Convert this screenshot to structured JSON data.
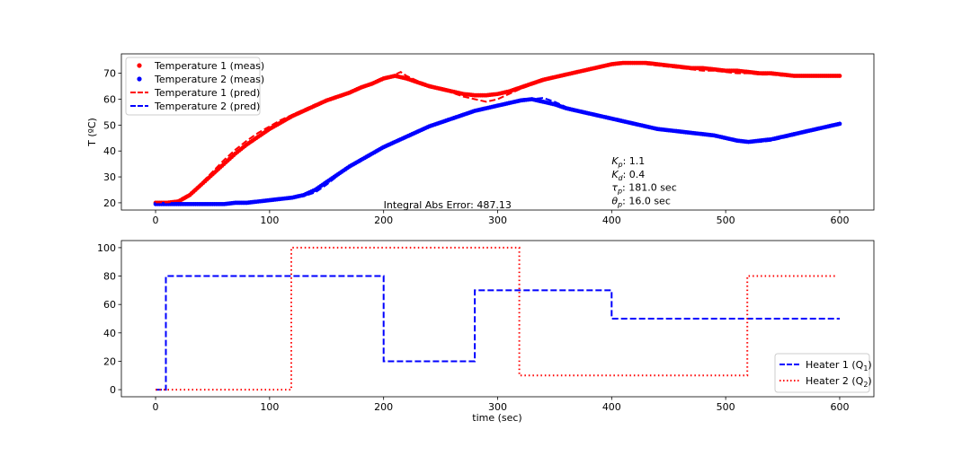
{
  "chart_data": [
    {
      "type": "scatter",
      "ylabel": "T (ºC)",
      "xlim": [
        -30,
        630
      ],
      "ylim": [
        17.2,
        77.5
      ],
      "xticks": [
        0,
        100,
        200,
        300,
        400,
        500,
        600
      ],
      "yticks": [
        20,
        30,
        40,
        50,
        60,
        70
      ],
      "legend_position": "top-left",
      "series": [
        {
          "name": "Temperature 1 (meas)",
          "style": "points",
          "color": "#ff0000",
          "x": [
            0,
            10,
            20,
            30,
            40,
            50,
            60,
            70,
            80,
            90,
            100,
            110,
            120,
            130,
            140,
            150,
            160,
            170,
            180,
            190,
            200,
            210,
            220,
            230,
            240,
            250,
            260,
            270,
            280,
            290,
            300,
            310,
            320,
            330,
            340,
            350,
            360,
            370,
            380,
            390,
            400,
            410,
            420,
            430,
            440,
            450,
            460,
            470,
            480,
            490,
            500,
            510,
            520,
            530,
            540,
            550,
            560,
            570,
            580,
            590,
            600
          ],
          "y": [
            20,
            20,
            20.5,
            23,
            27,
            31,
            35,
            39,
            42.5,
            45.5,
            48.5,
            51,
            53.5,
            55.5,
            57.5,
            59.5,
            61,
            62.5,
            64.5,
            66,
            68,
            69,
            68,
            66.5,
            65,
            64,
            63,
            62,
            61.5,
            61.5,
            62,
            63,
            64.5,
            66,
            67.5,
            68.5,
            69.5,
            70.5,
            71.5,
            72.5,
            73.5,
            74,
            74,
            74,
            73.5,
            73,
            72.5,
            72,
            72,
            71.5,
            71,
            71,
            70.5,
            70,
            70,
            69.5,
            69,
            69,
            69,
            69,
            69
          ]
        },
        {
          "name": "Temperature 2 (meas)",
          "style": "points",
          "color": "#0000ff",
          "x": [
            0,
            10,
            20,
            30,
            40,
            50,
            60,
            70,
            80,
            90,
            100,
            110,
            120,
            130,
            140,
            150,
            160,
            170,
            180,
            190,
            200,
            210,
            220,
            230,
            240,
            250,
            260,
            270,
            280,
            290,
            300,
            310,
            320,
            330,
            340,
            350,
            360,
            370,
            380,
            390,
            400,
            410,
            420,
            430,
            440,
            450,
            460,
            470,
            480,
            490,
            500,
            510,
            520,
            530,
            540,
            550,
            560,
            570,
            580,
            590,
            600
          ],
          "y": [
            19.5,
            19.5,
            19.5,
            19.5,
            19.5,
            19.5,
            19.5,
            20,
            20,
            20.5,
            21,
            21.5,
            22,
            23,
            25,
            28,
            31,
            34,
            36.5,
            39,
            41.5,
            43.5,
            45.5,
            47.5,
            49.5,
            51,
            52.5,
            54,
            55.5,
            56.5,
            57.5,
            58.5,
            59.5,
            60,
            59,
            58,
            56.5,
            55.5,
            54.5,
            53.5,
            52.5,
            51.5,
            50.5,
            49.5,
            48.5,
            48,
            47.5,
            47,
            46.5,
            46,
            45,
            44,
            43.5,
            44,
            44.5,
            45.5,
            46.5,
            47.5,
            48.5,
            49.5,
            50.5
          ]
        },
        {
          "name": "Temperature 1 (pred)",
          "style": "dashed",
          "color": "#ff0000",
          "x": [
            0,
            10,
            20,
            30,
            40,
            50,
            60,
            70,
            80,
            90,
            100,
            110,
            120,
            130,
            140,
            150,
            160,
            170,
            180,
            190,
            200,
            210,
            215,
            220,
            230,
            240,
            250,
            260,
            270,
            280,
            290,
            300,
            310,
            320,
            330,
            340,
            350,
            360,
            370,
            380,
            390,
            400,
            410,
            420,
            430,
            440,
            450,
            460,
            470,
            480,
            490,
            500,
            510,
            520,
            530,
            540,
            550,
            560,
            570,
            580,
            590,
            600
          ],
          "y": [
            20,
            20,
            21,
            23.5,
            27.5,
            32,
            36.5,
            40.5,
            44,
            47,
            49.5,
            52,
            54,
            56,
            58,
            59.5,
            61,
            62.5,
            64,
            66,
            68,
            69.5,
            70.5,
            69,
            67,
            65.5,
            64,
            62.5,
            61,
            60,
            59,
            60,
            62,
            64,
            65.5,
            67,
            68.5,
            69.5,
            70.5,
            71.5,
            72.5,
            73.5,
            74,
            74,
            73.5,
            73,
            72.5,
            72,
            71.5,
            71,
            71,
            70.5,
            70,
            70,
            69.5,
            69.5,
            69,
            69,
            69,
            69,
            69,
            69
          ]
        },
        {
          "name": "Temperature 2 (pred)",
          "style": "dashed",
          "color": "#0000ff",
          "x": [
            0,
            10,
            20,
            30,
            40,
            50,
            60,
            70,
            80,
            90,
            100,
            110,
            120,
            130,
            140,
            150,
            160,
            170,
            180,
            190,
            200,
            210,
            220,
            230,
            240,
            250,
            260,
            270,
            280,
            290,
            300,
            310,
            320,
            330,
            340,
            350,
            360,
            370,
            380,
            390,
            400,
            410,
            420,
            430,
            440,
            450,
            460,
            470,
            480,
            490,
            500,
            510,
            520,
            530,
            540,
            550,
            560,
            570,
            580,
            590,
            600
          ],
          "y": [
            19.5,
            19.5,
            19.5,
            19.5,
            19.5,
            19.5,
            19.5,
            20,
            20,
            20.5,
            21,
            21.5,
            22,
            22.5,
            24,
            27,
            30.5,
            34,
            36.5,
            39,
            41.5,
            43.5,
            45.5,
            47.5,
            49.5,
            51,
            52.5,
            54,
            55.5,
            56.5,
            57.5,
            58.5,
            59.5,
            60,
            60.5,
            59,
            57,
            55.5,
            54.5,
            53.5,
            52.5,
            51.5,
            50.5,
            49.5,
            48.5,
            48,
            47.5,
            47,
            46.5,
            46,
            45,
            44,
            43.5,
            43.5,
            44,
            45,
            46,
            47.5,
            48.5,
            49.5,
            50.5
          ]
        }
      ],
      "annotations": [
        {
          "text": "Integral Abs Error: 487.13",
          "x": 200,
          "y": 19.3
        },
        {
          "sym": "K",
          "sub": "p",
          "text": ": 1.1",
          "x": 400,
          "y": 36.2
        },
        {
          "sym": "K",
          "sub": "d",
          "text": ": 0.4",
          "x": 400,
          "y": 31.1
        },
        {
          "sym": "τ",
          "sub": "p",
          "text": ": 181.0 sec",
          "x": 400,
          "y": 26.0
        },
        {
          "sym": "θ",
          "sub": "p",
          "text": ": 16.0 sec",
          "x": 400,
          "y": 20.9
        }
      ]
    },
    {
      "type": "line",
      "xlabel": "time (sec)",
      "xlim": [
        -30,
        630
      ],
      "ylim": [
        -5,
        105
      ],
      "xticks": [
        0,
        100,
        200,
        300,
        400,
        500,
        600
      ],
      "yticks": [
        0,
        20,
        40,
        60,
        80,
        100
      ],
      "legend_position": "bottom-right",
      "series": [
        {
          "name": "Heater 1 (Q",
          "name_sub": "1",
          "name_end": ")",
          "style": "dashed",
          "color": "#0000ff",
          "x": [
            0,
            9,
            9,
            200,
            200,
            280,
            280,
            400,
            400,
            600
          ],
          "y": [
            0,
            0,
            80,
            80,
            20,
            20,
            70,
            70,
            50,
            50
          ]
        },
        {
          "name": "Heater 2 (Q",
          "name_sub": "2",
          "name_end": ")",
          "style": "dotted",
          "color": "#ff0000",
          "x": [
            0,
            119,
            119,
            319,
            319,
            519,
            519,
            598
          ],
          "y": [
            0,
            0,
            100,
            100,
            10,
            10,
            80,
            80
          ]
        }
      ]
    }
  ]
}
